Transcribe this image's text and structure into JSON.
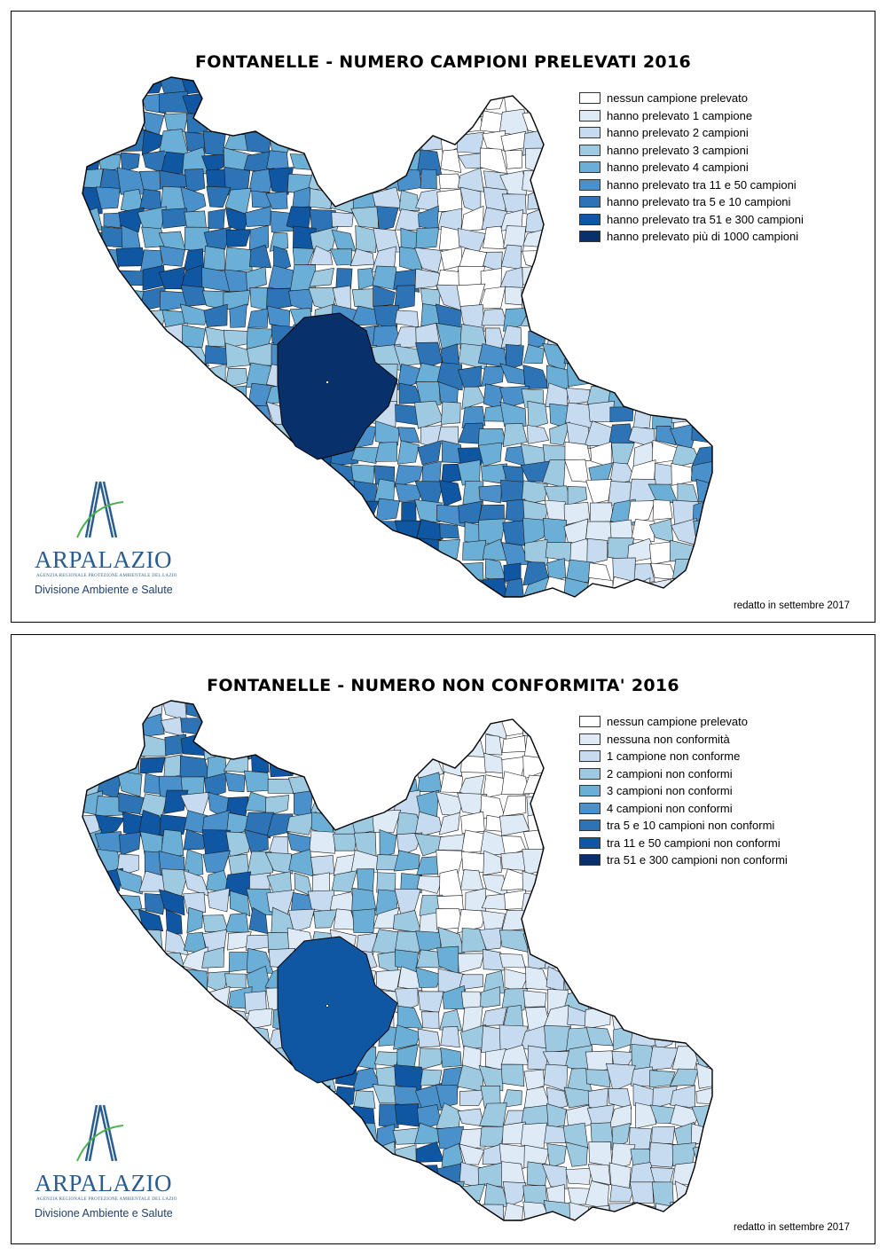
{
  "maps": [
    {
      "title": "FONTANELLE - NUMERO CAMPIONI PRELEVATI 2016",
      "legend": [
        {
          "label": "nessun campione prelevato",
          "color": "#ffffff"
        },
        {
          "label": "hanno prelevato 1 campione",
          "color": "#deebf7"
        },
        {
          "label": "hanno prelevato 2 campioni",
          "color": "#c6dbef"
        },
        {
          "label": "hanno prelevato 3 campioni",
          "color": "#9ecae1"
        },
        {
          "label": "hanno prelevato 4 campioni",
          "color": "#6baed6"
        },
        {
          "label": "hanno prelevato tra 11 e 50 campioni",
          "color": "#4a90cb"
        },
        {
          "label": "hanno prelevato tra 5 e 10 campioni",
          "color": "#2c74b5"
        },
        {
          "label": "hanno prelevato tra 51 e 300 campioni",
          "color": "#0f57a3"
        },
        {
          "label": "hanno prelevato più di 1000 campioni",
          "color": "#08306b"
        }
      ],
      "footer": "redatto in settembre 2017"
    },
    {
      "title": "FONTANELLE - NUMERO NON CONFORMITA' 2016",
      "legend": [
        {
          "label": "nessun campione prelevato",
          "color": "#ffffff"
        },
        {
          "label": "nessuna non conformità",
          "color": "#deebf7"
        },
        {
          "label": "1 campione non conforme",
          "color": "#c6dbef"
        },
        {
          "label": "2 campioni non conformi",
          "color": "#9ecae1"
        },
        {
          "label": "3 campioni non conformi",
          "color": "#6baed6"
        },
        {
          "label": "4 campioni non conformi",
          "color": "#4a90cb"
        },
        {
          "label": "tra 5 e 10 campioni non conformi",
          "color": "#2c74b5"
        },
        {
          "label": "tra 11 e 50 campioni non conformi",
          "color": "#0f57a3"
        },
        {
          "label": "tra 51 e 300 campioni non conformi",
          "color": "#08306b"
        }
      ],
      "footer": "redatto in settembre 2017"
    }
  ],
  "logo": {
    "name": "ARPALAZIO",
    "subtitle": "AGENZIA REGIONALE PROTEZIONE AMBIENTALE DEL LAZIO",
    "division": "Divisione Ambiente e Salute",
    "colors": {
      "blue": "#2a5d8f",
      "green": "#4caf50"
    }
  }
}
